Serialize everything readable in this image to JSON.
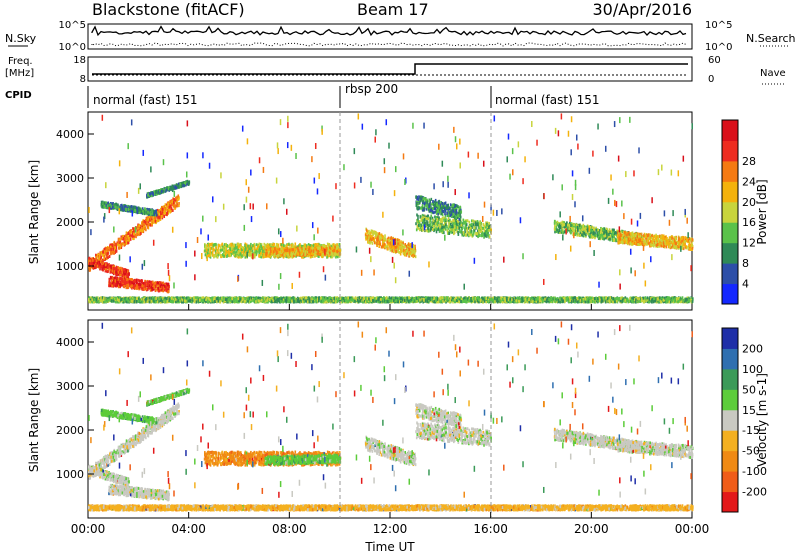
{
  "header": {
    "station": "Blackstone (fitACF)",
    "beam": "Beam 17",
    "date": "30/Apr/2016"
  },
  "panels": {
    "nsky_label": "N.Sky",
    "nsearch_label": "N.Search",
    "freq_label_1": "Freq.",
    "freq_label_2": "[MHz]",
    "nave_label": "Nave",
    "cpid_label": "CPID",
    "nsky_ticks": [
      "10^5",
      "10^0"
    ],
    "nsearch_ticks": [
      "10^5",
      "10^0"
    ],
    "freq_ticks": [
      "18",
      "8"
    ],
    "nave_ticks": [
      "60",
      "0"
    ]
  },
  "chart_data": [
    {
      "type": "heatmap",
      "name": "power",
      "ylabel": "Slant Range [km]",
      "xlabel": "Time UT",
      "x_ticks": [
        "00:00",
        "04:00",
        "08:00",
        "12:00",
        "16:00",
        "20:00",
        "00:00"
      ],
      "y_ticks": [
        1000,
        2000,
        3000,
        4000
      ],
      "colorbar_label": "Power [dB]",
      "colorbar_ticks": [
        4,
        8,
        12,
        16,
        20,
        24,
        28
      ],
      "colorbar_colors": [
        "#1428ff",
        "#2d4fa8",
        "#2f8a57",
        "#5ac24a",
        "#c8d43c",
        "#f4b20c",
        "#f57a12",
        "#ee2c20",
        "#d90f1a"
      ]
    },
    {
      "type": "heatmap",
      "name": "velocity",
      "ylabel": "Slant Range [km]",
      "xlabel": "Time UT",
      "x_ticks": [
        "00:00",
        "04:00",
        "08:00",
        "12:00",
        "16:00",
        "20:00",
        "00:00"
      ],
      "y_ticks": [
        1000,
        2000,
        3000,
        4000
      ],
      "colorbar_label": "Velocity [m s-1]",
      "colorbar_ticks": [
        200,
        100,
        50,
        15,
        -15,
        -50,
        -100,
        -200
      ],
      "colorbar_colors": [
        "#1f2fa8",
        "#2f6fb0",
        "#3b9a58",
        "#5ccc3a",
        "#c9c9c2",
        "#f4b020",
        "#f08a14",
        "#f05c18",
        "#e3181a"
      ]
    }
  ],
  "cpid_segments": [
    {
      "label": "normal (fast) 151",
      "start_hour": 0
    },
    {
      "label": "rbsp 200",
      "start_hour": 10
    },
    {
      "label": "normal (fast) 151",
      "start_hour": 16
    }
  ]
}
